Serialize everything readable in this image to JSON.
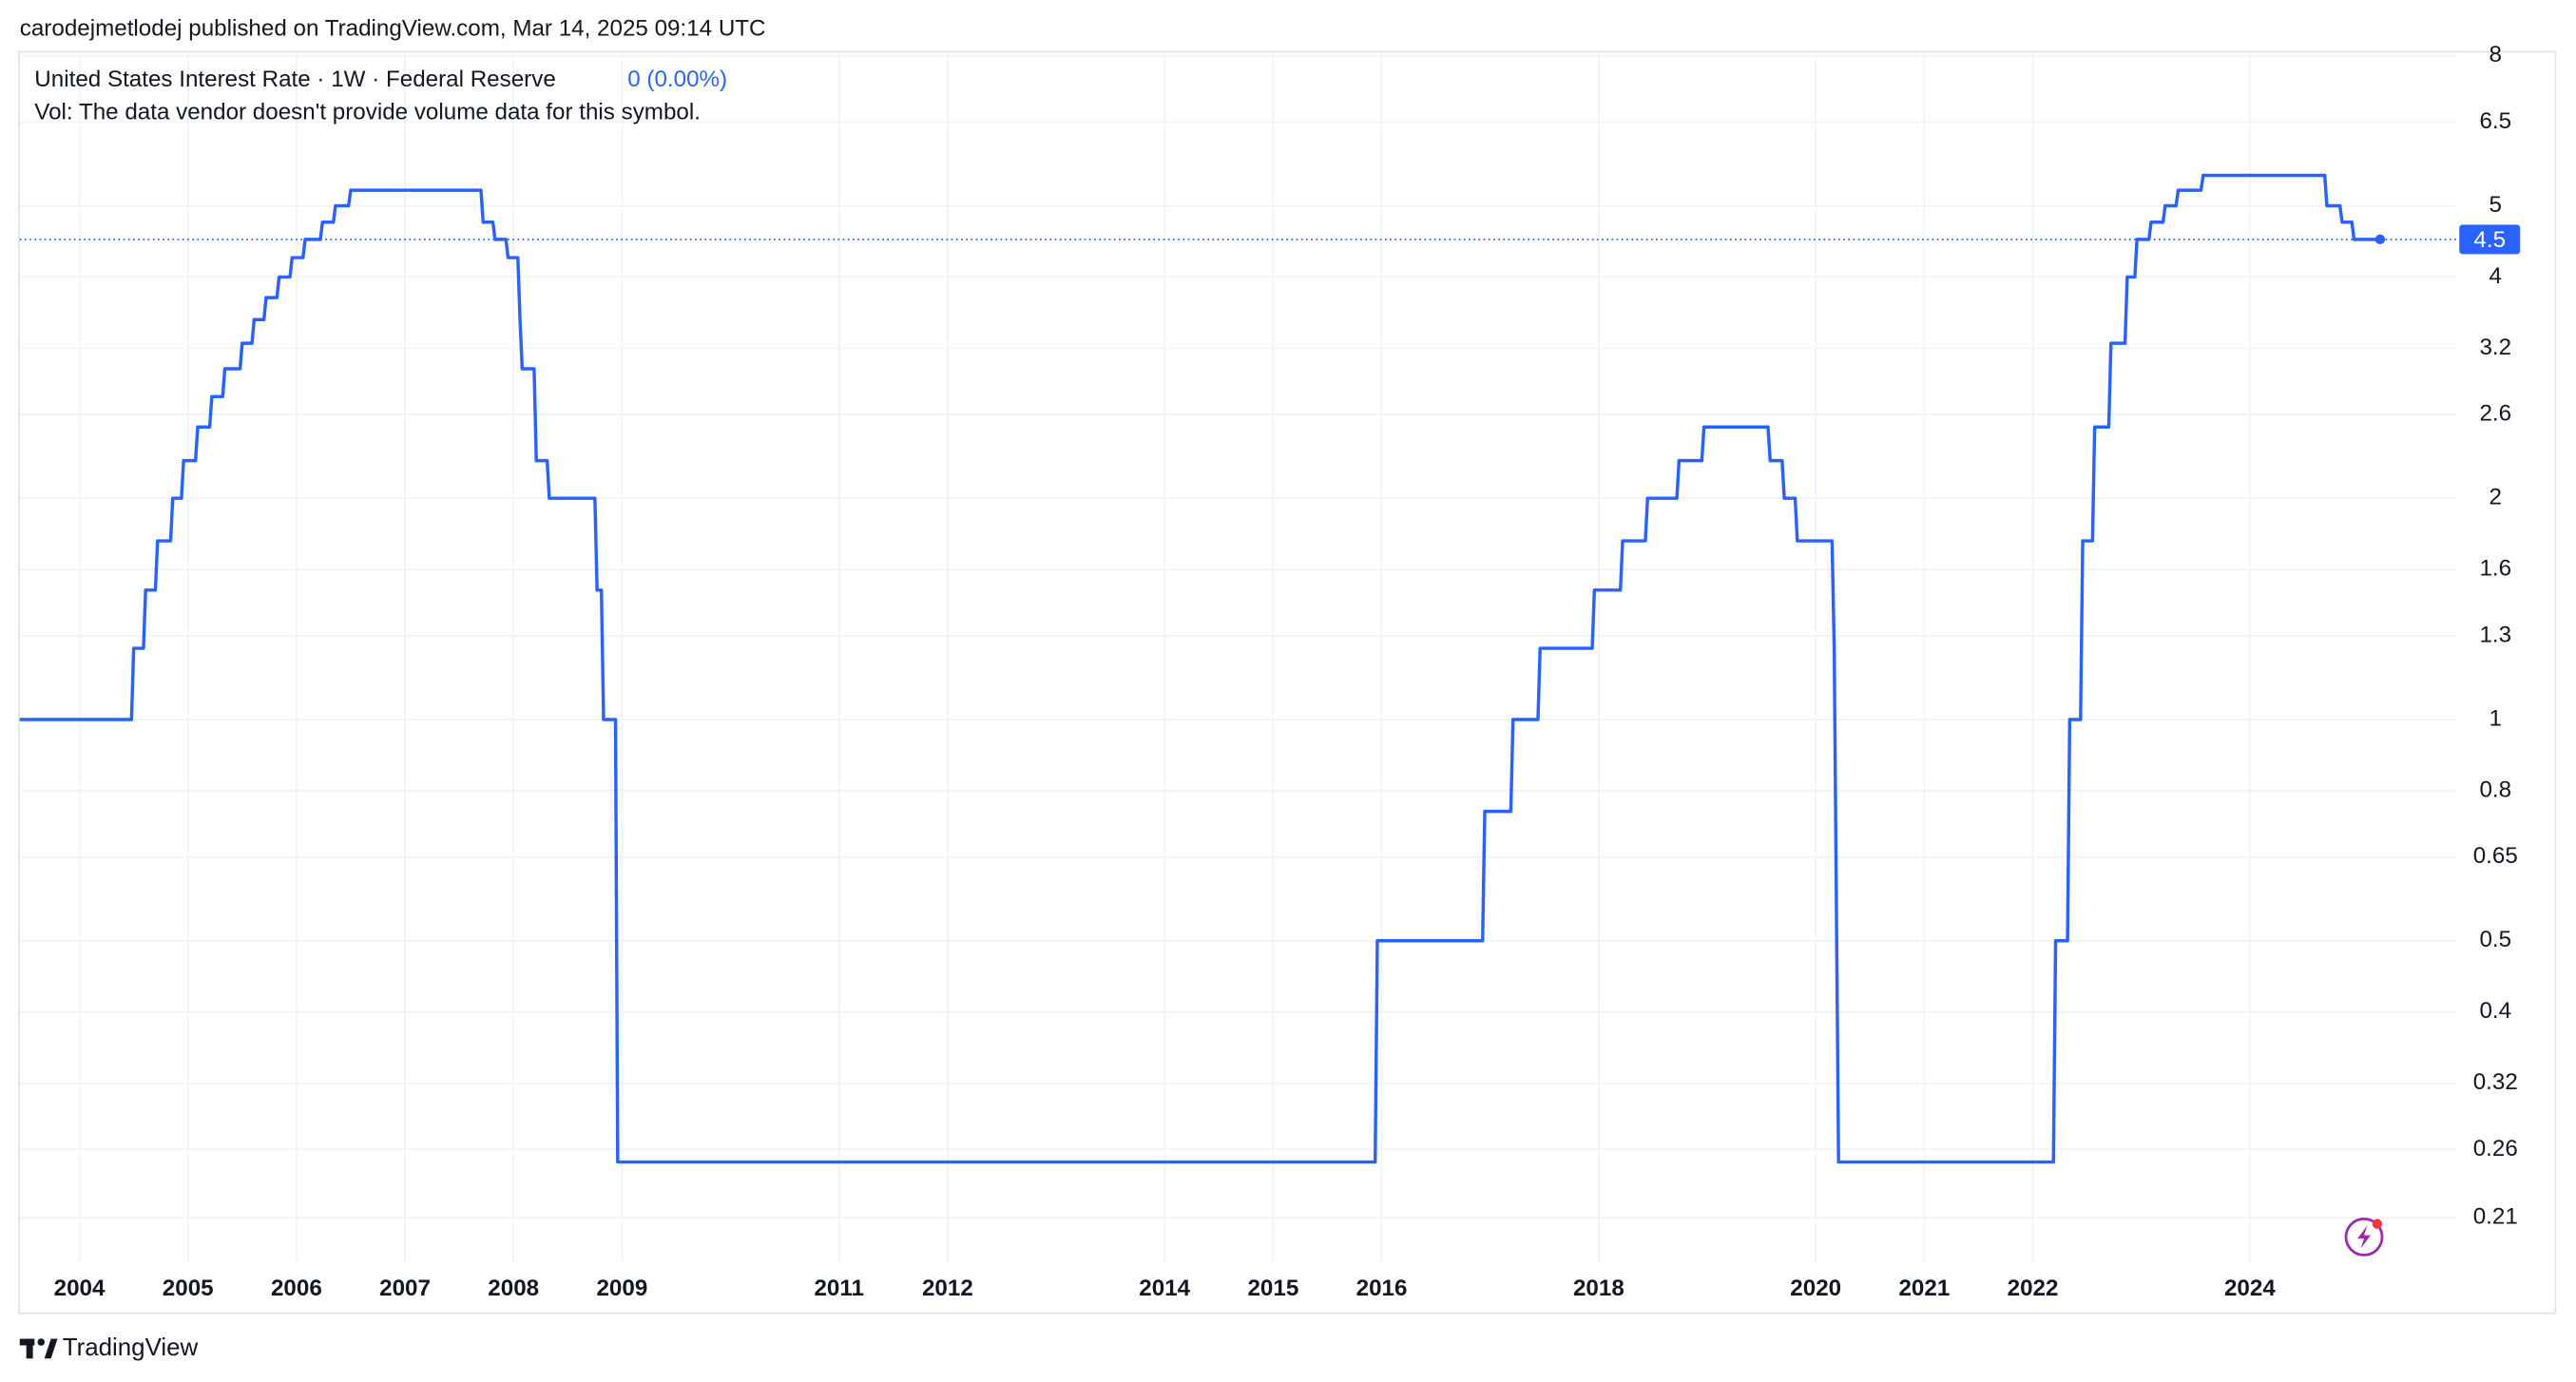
{
  "chart_data": {
    "type": "line",
    "title": "carodejmetlodej published on TradingView.com, Mar 14, 2025 09:14 UTC",
    "symbol": "United States Interest Rate · 1W · Federal Reserve",
    "change": "0 (0.00%)",
    "volume_note": "Vol: The data vendor doesn't provide volume data for this symbol.",
    "brand": "TradingView",
    "log_scale": true,
    "grid": true,
    "series": [
      {
        "name": "United States Interest Rate",
        "color": "#2962ff",
        "x": [
          2003.45,
          2004.48,
          2004.5,
          2004.59,
          2004.61,
          2004.7,
          2004.72,
          2004.84,
          2004.86,
          2004.94,
          2004.96,
          2005.07,
          2005.09,
          2005.2,
          2005.22,
          2005.32,
          2005.34,
          2005.48,
          2005.5,
          2005.59,
          2005.61,
          2005.7,
          2005.72,
          2005.82,
          2005.84,
          2005.94,
          2005.96,
          2006.06,
          2006.08,
          2006.22,
          2006.24,
          2006.34,
          2006.36,
          2006.48,
          2006.5,
          2007.7,
          2007.72,
          2007.81,
          2007.83,
          2007.93,
          2007.95,
          2008.04,
          2008.06,
          2008.08,
          2008.19,
          2008.21,
          2008.31,
          2008.33,
          2008.75,
          2008.77,
          2008.81,
          2008.83,
          2008.94,
          2008.96,
          2015.94,
          2015.96,
          2016.93,
          2016.95,
          2017.19,
          2017.21,
          2017.44,
          2017.46,
          2017.94,
          2017.96,
          2018.2,
          2018.22,
          2018.43,
          2018.45,
          2018.72,
          2018.74,
          2018.95,
          2018.97,
          2019.56,
          2019.58,
          2019.69,
          2019.71,
          2019.81,
          2019.83,
          2020.15,
          2020.17,
          2020.21,
          2022.19,
          2022.21,
          2022.32,
          2022.34,
          2022.44,
          2022.46,
          2022.55,
          2022.57,
          2022.7,
          2022.72,
          2022.85,
          2022.87,
          2022.94,
          2022.96,
          2023.07,
          2023.09,
          2023.2,
          2023.22,
          2023.32,
          2023.34,
          2023.55,
          2023.57,
          2024.69,
          2024.71,
          2024.83,
          2024.85,
          2024.94,
          2024.96,
          2025.2
        ],
        "values": [
          1,
          1,
          1.25,
          1.25,
          1.5,
          1.5,
          1.75,
          1.75,
          2,
          2,
          2.25,
          2.25,
          2.5,
          2.5,
          2.75,
          2.75,
          3,
          3,
          3.25,
          3.25,
          3.5,
          3.5,
          3.75,
          3.75,
          4,
          4,
          4.25,
          4.25,
          4.5,
          4.5,
          4.75,
          4.75,
          5,
          5,
          5.25,
          5.25,
          4.75,
          4.75,
          4.5,
          4.5,
          4.25,
          4.25,
          3.5,
          3,
          3,
          2.25,
          2.25,
          2,
          2,
          1.5,
          1.5,
          1,
          1,
          0.25,
          0.25,
          0.5,
          0.5,
          0.75,
          0.75,
          1,
          1,
          1.25,
          1.25,
          1.5,
          1.5,
          1.75,
          1.75,
          2,
          2,
          2.25,
          2.25,
          2.5,
          2.5,
          2.25,
          2.25,
          2,
          2,
          1.75,
          1.75,
          1.25,
          0.25,
          0.25,
          0.5,
          0.5,
          1,
          1,
          1.75,
          1.75,
          2.5,
          2.5,
          3.25,
          3.25,
          4,
          4,
          4.5,
          4.5,
          4.75,
          4.75,
          5,
          5,
          5.25,
          5.25,
          5.5,
          5.5,
          5,
          5,
          4.75,
          4.75,
          4.5,
          4.5
        ]
      }
    ],
    "xlim": [
      2003.45,
      2025.9
    ],
    "xticks": [
      2004,
      2005,
      2006,
      2007,
      2008,
      2009,
      2011,
      2012,
      2014,
      2015,
      2016,
      2018,
      2020,
      2021,
      2022,
      2024
    ],
    "ylim": [
      0.183,
      8.08
    ],
    "yticks": [
      0.21,
      0.26,
      0.32,
      0.4,
      0.5,
      0.65,
      0.8,
      1,
      1.3,
      1.6,
      2,
      2.6,
      3.2,
      4,
      5,
      6.5,
      8
    ]
  }
}
